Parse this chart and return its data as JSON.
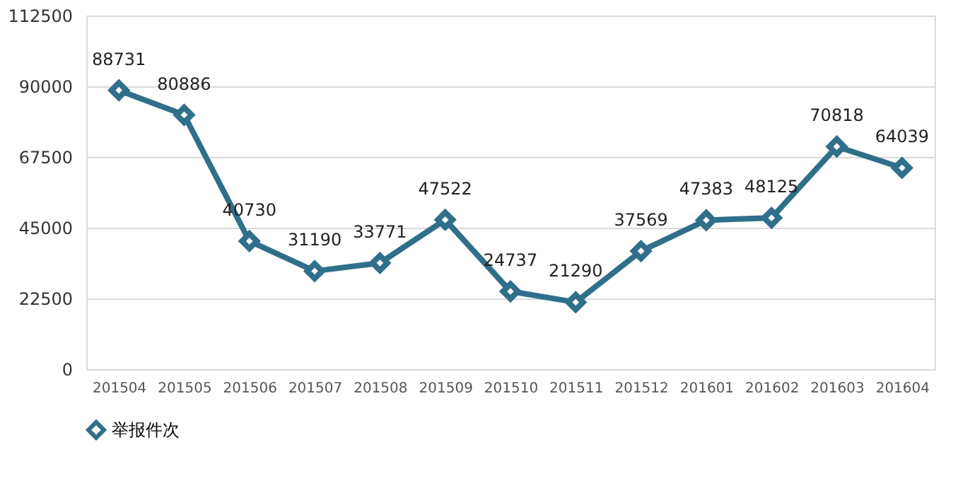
{
  "chart_data": {
    "type": "line",
    "categories": [
      "201504",
      "201505",
      "201506",
      "201507",
      "201508",
      "201509",
      "201510",
      "201511",
      "201512",
      "201601",
      "201602",
      "201603",
      "201604"
    ],
    "series": [
      {
        "name": "举报件次",
        "color": "#2f6f8a",
        "values": [
          88731,
          80886,
          40730,
          31190,
          33771,
          47522,
          24737,
          21290,
          37569,
          47383,
          48125,
          70818,
          64039
        ]
      }
    ],
    "ylim": [
      0,
      112500
    ],
    "yticks": [
      0,
      22500,
      45000,
      67500,
      90000,
      112500
    ],
    "grid": "y",
    "legend": "bottom",
    "marker": "diamond",
    "line_style": "solid",
    "data_labels": true
  }
}
